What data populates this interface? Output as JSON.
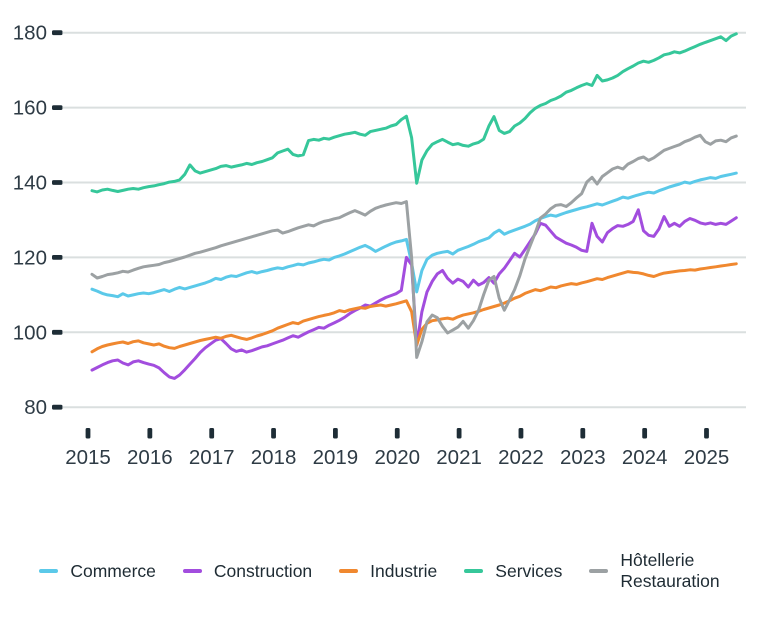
{
  "chart_data": {
    "type": "line",
    "title": "",
    "x_start": "2015-01",
    "x_end": "2025-06",
    "frequency": "monthly",
    "x_ticks": [
      "2015",
      "2016",
      "2017",
      "2018",
      "2019",
      "2020",
      "2021",
      "2022",
      "2023",
      "2024",
      "2025"
    ],
    "y_ticks": [
      80,
      100,
      120,
      140,
      160,
      180
    ],
    "ylim": [
      80,
      184
    ],
    "grid": "horizontal",
    "legend_position": "bottom",
    "series": [
      {
        "name": "Commerce",
        "color": "#5bc9e9",
        "legend_lines": [
          "Commerce"
        ],
        "values": [
          111.5,
          111.0,
          110.4,
          110.0,
          109.8,
          109.5,
          110.3,
          109.7,
          110.0,
          110.3,
          110.5,
          110.3,
          110.6,
          111.0,
          111.4,
          110.9,
          111.5,
          112.0,
          111.6,
          112.0,
          112.4,
          112.8,
          113.2,
          113.7,
          114.4,
          114.1,
          114.7,
          115.1,
          114.9,
          115.4,
          115.9,
          116.2,
          115.8,
          116.2,
          116.5,
          116.9,
          117.2,
          117.0,
          117.5,
          117.8,
          118.2,
          118.0,
          118.5,
          118.8,
          119.2,
          119.5,
          119.3,
          120.0,
          120.4,
          120.9,
          121.5,
          122.1,
          122.7,
          123.2,
          122.5,
          121.6,
          122.3,
          123.0,
          123.6,
          124.1,
          124.4,
          124.8,
          118.5,
          110.8,
          116.5,
          119.5,
          120.6,
          121.1,
          121.4,
          121.6,
          120.9,
          121.9,
          122.4,
          122.9,
          123.5,
          124.2,
          124.7,
          125.2,
          126.5,
          127.3,
          126.2,
          126.8,
          127.3,
          127.8,
          128.3,
          128.9,
          129.8,
          130.4,
          130.9,
          131.3,
          131.0,
          131.5,
          132.0,
          132.4,
          132.8,
          133.2,
          133.5,
          133.9,
          134.3,
          134.0,
          134.5,
          135.0,
          135.5,
          136.1,
          135.8,
          136.3,
          136.7,
          137.1,
          137.4,
          137.2,
          137.8,
          138.3,
          138.8,
          139.2,
          139.6,
          140.1,
          139.8,
          140.3,
          140.7,
          141.0,
          141.3,
          141.1,
          141.6,
          141.9,
          142.2,
          142.5
        ]
      },
      {
        "name": "Construction",
        "color": "#a24dde",
        "legend_lines": [
          "Construction"
        ],
        "values": [
          89.9,
          90.6,
          91.3,
          91.9,
          92.4,
          92.6,
          91.8,
          91.3,
          92.1,
          92.4,
          91.9,
          91.5,
          91.2,
          90.5,
          89.2,
          88.1,
          87.7,
          88.6,
          90.0,
          91.5,
          93.0,
          94.6,
          95.9,
          96.9,
          97.9,
          98.3,
          97.0,
          95.6,
          94.9,
          95.3,
          94.7,
          95.1,
          95.6,
          96.1,
          96.4,
          96.9,
          97.4,
          97.9,
          98.5,
          99.1,
          98.7,
          99.4,
          100.1,
          100.7,
          101.3,
          101.1,
          101.9,
          102.5,
          103.2,
          104.0,
          105.0,
          105.8,
          106.5,
          107.3,
          107.0,
          107.8,
          108.6,
          109.3,
          109.8,
          110.3,
          111.2,
          120.0,
          118.0,
          96.5,
          105.5,
          110.8,
          113.6,
          115.6,
          116.5,
          114.4,
          113.1,
          114.2,
          113.6,
          112.1,
          113.9,
          112.6,
          113.3,
          114.6,
          113.1,
          115.6,
          117.1,
          119.1,
          121.1,
          120.1,
          122.1,
          124.2,
          126.3,
          129.1,
          128.6,
          127.0,
          125.4,
          124.6,
          123.8,
          123.3,
          122.7,
          121.9,
          121.6,
          129.1,
          125.6,
          124.1,
          126.6,
          127.7,
          128.5,
          128.3,
          128.8,
          129.6,
          132.7,
          127.1,
          125.9,
          125.6,
          127.6,
          130.9,
          128.3,
          129.1,
          128.3,
          129.6,
          130.4,
          129.9,
          129.2,
          128.9,
          129.2,
          128.8,
          129.1,
          128.8,
          129.7,
          130.6
        ]
      },
      {
        "name": "Industrie",
        "color": "#f0882f",
        "legend_lines": [
          "Industrie"
        ],
        "values": [
          94.8,
          95.6,
          96.2,
          96.6,
          96.9,
          97.2,
          97.4,
          97.0,
          97.5,
          97.7,
          97.2,
          96.9,
          96.6,
          96.9,
          96.3,
          95.9,
          95.7,
          96.2,
          96.6,
          97.0,
          97.4,
          97.8,
          98.1,
          98.4,
          98.7,
          98.4,
          98.9,
          99.2,
          98.8,
          98.4,
          98.1,
          98.5,
          99.0,
          99.4,
          99.9,
          100.4,
          101.1,
          101.6,
          102.1,
          102.6,
          102.3,
          103.0,
          103.4,
          103.8,
          104.2,
          104.5,
          104.8,
          105.2,
          105.8,
          105.5,
          106.0,
          106.3,
          106.6,
          106.4,
          106.9,
          107.1,
          107.3,
          107.0,
          107.3,
          107.6,
          108.0,
          108.4,
          105.5,
          96.6,
          100.8,
          102.4,
          103.1,
          103.3,
          103.6,
          103.8,
          103.5,
          104.1,
          104.6,
          104.9,
          105.2,
          105.6,
          106.1,
          106.5,
          106.9,
          107.3,
          107.8,
          108.4,
          109.1,
          109.6,
          110.4,
          110.9,
          111.4,
          111.1,
          111.6,
          112.1,
          111.9,
          112.4,
          112.7,
          113.0,
          112.8,
          113.2,
          113.5,
          113.9,
          114.3,
          114.1,
          114.6,
          115.0,
          115.4,
          115.8,
          116.2,
          116.0,
          115.9,
          115.6,
          115.2,
          114.9,
          115.4,
          115.8,
          116.0,
          116.2,
          116.4,
          116.5,
          116.7,
          116.6,
          116.9,
          117.1,
          117.3,
          117.5,
          117.7,
          117.9,
          118.1,
          118.3
        ]
      },
      {
        "name": "Services",
        "color": "#36c79a",
        "legend_lines": [
          "Services"
        ],
        "values": [
          137.8,
          137.5,
          138.0,
          138.2,
          137.9,
          137.6,
          137.9,
          138.2,
          138.4,
          138.2,
          138.6,
          138.9,
          139.1,
          139.4,
          139.7,
          140.1,
          140.3,
          140.7,
          142.2,
          144.7,
          143.1,
          142.5,
          142.9,
          143.3,
          143.7,
          144.3,
          144.5,
          144.1,
          144.4,
          144.7,
          145.1,
          144.8,
          145.3,
          145.6,
          146.1,
          146.6,
          147.9,
          148.4,
          148.9,
          147.5,
          147.1,
          147.4,
          151.2,
          151.5,
          151.3,
          151.8,
          151.6,
          152.1,
          152.5,
          152.9,
          153.1,
          153.4,
          152.9,
          152.6,
          153.6,
          153.9,
          154.2,
          154.5,
          155.1,
          155.5,
          156.8,
          157.7,
          152.0,
          139.8,
          146.0,
          148.5,
          150.2,
          150.9,
          151.5,
          150.8,
          150.1,
          150.4,
          149.9,
          149.7,
          150.3,
          150.7,
          151.6,
          155.1,
          157.6,
          153.9,
          153.1,
          153.6,
          155.1,
          155.9,
          157.1,
          158.6,
          159.8,
          160.6,
          161.1,
          161.9,
          162.4,
          163.1,
          164.1,
          164.6,
          165.3,
          165.9,
          166.4,
          165.9,
          168.6,
          167.1,
          167.4,
          167.9,
          168.6,
          169.6,
          170.4,
          171.1,
          171.9,
          172.4,
          172.1,
          172.6,
          173.3,
          174.1,
          174.4,
          174.9,
          174.6,
          175.1,
          175.7,
          176.3,
          176.9,
          177.4,
          177.9,
          178.4,
          178.9,
          177.9,
          179.1,
          179.7
        ]
      },
      {
        "name": "Hôtellerie Restauration",
        "color": "#9ca1a3",
        "legend_lines": [
          "Hôtellerie",
          "Restauration"
        ],
        "values": [
          115.5,
          114.5,
          114.9,
          115.4,
          115.6,
          115.9,
          116.3,
          116.1,
          116.6,
          117.1,
          117.5,
          117.7,
          117.9,
          118.1,
          118.6,
          118.9,
          119.3,
          119.7,
          120.1,
          120.6,
          121.1,
          121.4,
          121.8,
          122.2,
          122.6,
          123.1,
          123.5,
          123.9,
          124.3,
          124.7,
          125.1,
          125.5,
          125.9,
          126.3,
          126.7,
          127.1,
          127.3,
          126.5,
          126.9,
          127.4,
          127.9,
          128.3,
          128.7,
          128.4,
          129.1,
          129.6,
          129.9,
          130.3,
          130.6,
          131.3,
          131.9,
          132.5,
          131.9,
          131.3,
          132.3,
          133.1,
          133.6,
          134.0,
          134.3,
          134.6,
          134.4,
          134.9,
          120.0,
          93.3,
          97.5,
          102.8,
          104.6,
          103.9,
          101.6,
          99.8,
          100.6,
          101.4,
          102.9,
          101.1,
          103.1,
          105.9,
          110.1,
          113.9,
          114.9,
          109.1,
          105.9,
          108.6,
          111.4,
          115.1,
          119.6,
          123.1,
          126.6,
          130.5,
          131.6,
          133.0,
          133.9,
          134.1,
          133.6,
          134.6,
          135.9,
          137.0,
          140.1,
          141.4,
          139.6,
          141.6,
          142.6,
          143.6,
          144.1,
          143.6,
          144.9,
          145.6,
          146.4,
          146.8,
          145.9,
          146.6,
          147.6,
          148.6,
          149.1,
          149.6,
          150.1,
          150.9,
          151.4,
          152.1,
          152.6,
          150.9,
          150.2,
          151.1,
          151.3,
          150.9,
          151.9,
          152.4
        ]
      }
    ]
  },
  "colors": {
    "axis_text": "#2e3b45",
    "tick_mark": "#1e2d36",
    "gridline": "#dadfdf",
    "background": "#ffffff"
  }
}
